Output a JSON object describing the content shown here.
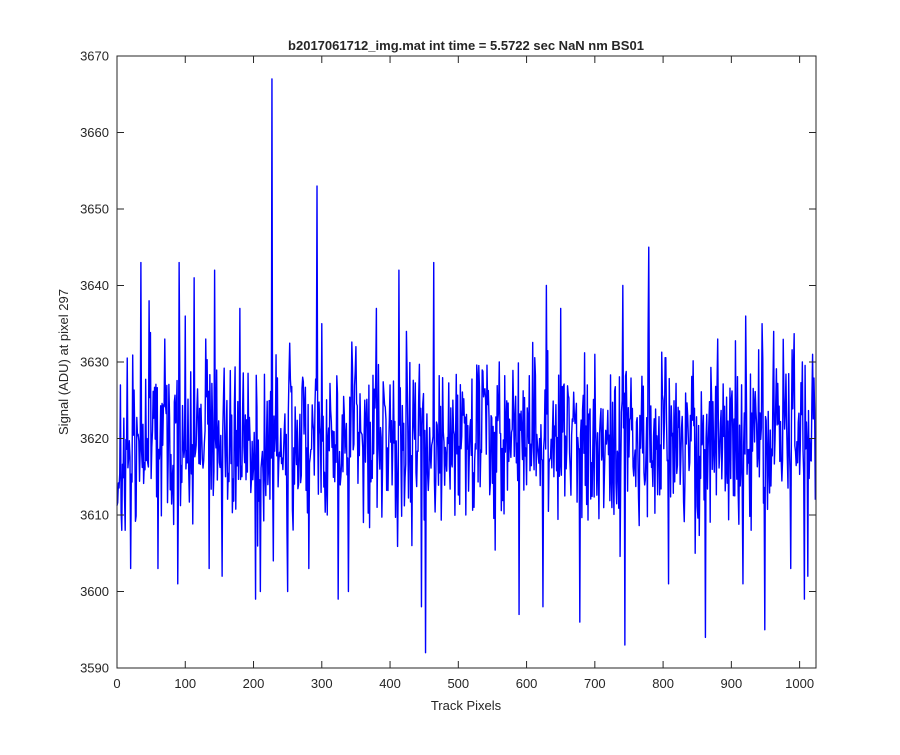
{
  "figure": {
    "background": "#ffffff",
    "axes_color": "#262626",
    "line_color": "#0000ff"
  },
  "chart_data": {
    "type": "line",
    "title": "b2017061712_img.mat int time = 5.5722 sec  NaN nm BS01",
    "xlabel": "Track Pixels",
    "ylabel": "Signal (ADU) at pixel 297",
    "xlim": [
      0,
      1024
    ],
    "ylim": [
      3590,
      3670
    ],
    "xticks": [
      0,
      100,
      200,
      300,
      400,
      500,
      600,
      700,
      800,
      900,
      1000
    ],
    "yticks": [
      3590,
      3600,
      3610,
      3620,
      3630,
      3640,
      3650,
      3660,
      3670
    ],
    "grid": false,
    "legend": "none",
    "series": [
      {
        "color": "#0000ff",
        "noise": {
          "n": 1024,
          "mean": 3619.5,
          "amplitude": 8.5,
          "seed": 20170617
        },
        "features": [
          {
            "x": 5,
            "y": 3627
          },
          {
            "x": 7,
            "y": 3608
          },
          {
            "x": 12,
            "y": 3608
          },
          {
            "x": 20,
            "y": 3603
          },
          {
            "x": 35,
            "y": 3643
          },
          {
            "x": 47,
            "y": 3638
          },
          {
            "x": 60,
            "y": 3603
          },
          {
            "x": 70,
            "y": 3633
          },
          {
            "x": 89,
            "y": 3601
          },
          {
            "x": 91,
            "y": 3643
          },
          {
            "x": 100,
            "y": 3636
          },
          {
            "x": 113,
            "y": 3641
          },
          {
            "x": 130,
            "y": 3633
          },
          {
            "x": 135,
            "y": 3603
          },
          {
            "x": 143,
            "y": 3642
          },
          {
            "x": 154,
            "y": 3602
          },
          {
            "x": 180,
            "y": 3637
          },
          {
            "x": 203,
            "y": 3599
          },
          {
            "x": 210,
            "y": 3600
          },
          {
            "x": 227,
            "y": 3667
          },
          {
            "x": 229,
            "y": 3604
          },
          {
            "x": 250,
            "y": 3600
          },
          {
            "x": 281,
            "y": 3603
          },
          {
            "x": 293,
            "y": 3653
          },
          {
            "x": 300,
            "y": 3635
          },
          {
            "x": 324,
            "y": 3599
          },
          {
            "x": 339,
            "y": 3600
          },
          {
            "x": 350,
            "y": 3632
          },
          {
            "x": 363,
            "y": 3625
          },
          {
            "x": 380,
            "y": 3637
          },
          {
            "x": 400,
            "y": 3627
          },
          {
            "x": 413,
            "y": 3642
          },
          {
            "x": 424,
            "y": 3634
          },
          {
            "x": 432,
            "y": 3606
          },
          {
            "x": 446,
            "y": 3598
          },
          {
            "x": 452,
            "y": 3592
          },
          {
            "x": 464,
            "y": 3643
          },
          {
            "x": 489,
            "y": 3624
          },
          {
            "x": 511,
            "y": 3610
          },
          {
            "x": 560,
            "y": 3630
          },
          {
            "x": 589,
            "y": 3597
          },
          {
            "x": 601,
            "y": 3624
          },
          {
            "x": 624,
            "y": 3598
          },
          {
            "x": 629,
            "y": 3640
          },
          {
            "x": 650,
            "y": 3637
          },
          {
            "x": 678,
            "y": 3596
          },
          {
            "x": 689,
            "y": 3627
          },
          {
            "x": 700,
            "y": 3631
          },
          {
            "x": 741,
            "y": 3640
          },
          {
            "x": 744,
            "y": 3593
          },
          {
            "x": 779,
            "y": 3645
          },
          {
            "x": 800,
            "y": 3625
          },
          {
            "x": 808,
            "y": 3601
          },
          {
            "x": 847,
            "y": 3605
          },
          {
            "x": 862,
            "y": 3594
          },
          {
            "x": 880,
            "y": 3633
          },
          {
            "x": 900,
            "y": 3625
          },
          {
            "x": 917,
            "y": 3601
          },
          {
            "x": 921,
            "y": 3636
          },
          {
            "x": 945,
            "y": 3635
          },
          {
            "x": 949,
            "y": 3595
          },
          {
            "x": 962,
            "y": 3634
          },
          {
            "x": 987,
            "y": 3603
          },
          {
            "x": 1004,
            "y": 3630
          },
          {
            "x": 1007,
            "y": 3599
          },
          {
            "x": 1012,
            "y": 3602
          },
          {
            "x": 1019,
            "y": 3631
          },
          {
            "x": 1023,
            "y": 3612
          }
        ]
      }
    ]
  }
}
